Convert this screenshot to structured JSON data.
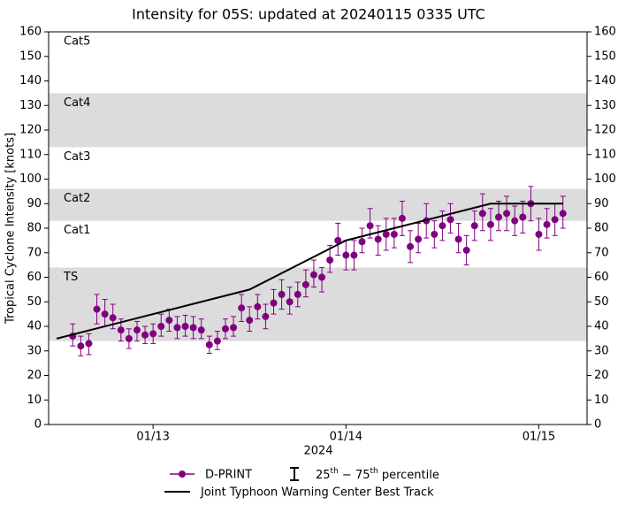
{
  "chart_data": {
    "type": "errorbar-line",
    "title": "Intensity for 05S: updated at 20240115 0335 UTC",
    "ylabel": "Tropical Cyclone Intensity [knots]",
    "xlabel": "2024",
    "xlim": [
      "2024-01-12T11:00",
      "2024-01-15T06:00"
    ],
    "xticks": [
      {
        "value": "2024-01-13T00:00",
        "label": "01/13"
      },
      {
        "value": "2024-01-14T00:00",
        "label": "01/14"
      },
      {
        "value": "2024-01-15T00:00",
        "label": "01/15"
      }
    ],
    "ylim": [
      0,
      160
    ],
    "yticks": [
      0,
      10,
      20,
      30,
      40,
      50,
      60,
      70,
      80,
      90,
      100,
      110,
      120,
      130,
      140,
      150,
      160
    ],
    "y2lim": [
      0,
      160
    ],
    "y2ticks": [
      0,
      10,
      20,
      30,
      40,
      50,
      60,
      70,
      80,
      90,
      100,
      110,
      120,
      130,
      140,
      150,
      160
    ],
    "bands": [
      {
        "label": "TS",
        "range": [
          34,
          64
        ],
        "shaded": true
      },
      {
        "label": "Cat1",
        "range": [
          64,
          83
        ],
        "shaded": false
      },
      {
        "label": "Cat2",
        "range": [
          83,
          96
        ],
        "shaded": true
      },
      {
        "label": "Cat3",
        "range": [
          96,
          113
        ],
        "shaded": false
      },
      {
        "label": "Cat4",
        "range": [
          113,
          135
        ],
        "shaded": true
      },
      {
        "label": "Cat5",
        "range": [
          137,
          160
        ],
        "shaded": false
      }
    ],
    "band_color": "#dcdcdc",
    "errorbar_legend": "25th − 75th percentile",
    "series": [
      {
        "name": "D-PRINT",
        "color": "#800080",
        "kind": "points",
        "x": [
          "2024-01-12T14:00",
          "2024-01-12T15:00",
          "2024-01-12T16:00",
          "2024-01-12T17:00",
          "2024-01-12T18:00",
          "2024-01-12T19:00",
          "2024-01-12T20:00",
          "2024-01-12T21:00",
          "2024-01-12T22:00",
          "2024-01-12T23:00",
          "2024-01-13T00:00",
          "2024-01-13T01:00",
          "2024-01-13T02:00",
          "2024-01-13T03:00",
          "2024-01-13T04:00",
          "2024-01-13T05:00",
          "2024-01-13T06:00",
          "2024-01-13T07:00",
          "2024-01-13T08:00",
          "2024-01-13T09:00",
          "2024-01-13T10:00",
          "2024-01-13T11:00",
          "2024-01-13T12:00",
          "2024-01-13T13:00",
          "2024-01-13T14:00",
          "2024-01-13T15:00",
          "2024-01-13T16:00",
          "2024-01-13T17:00",
          "2024-01-13T18:00",
          "2024-01-13T19:00",
          "2024-01-13T20:00",
          "2024-01-13T21:00",
          "2024-01-13T22:00",
          "2024-01-13T23:00",
          "2024-01-14T00:00",
          "2024-01-14T01:00",
          "2024-01-14T02:00",
          "2024-01-14T03:00",
          "2024-01-14T04:00",
          "2024-01-14T05:00",
          "2024-01-14T06:00",
          "2024-01-14T07:00",
          "2024-01-14T08:00",
          "2024-01-14T09:00",
          "2024-01-14T10:00",
          "2024-01-14T11:00",
          "2024-01-14T12:00",
          "2024-01-14T13:00",
          "2024-01-14T14:00",
          "2024-01-14T15:00",
          "2024-01-14T16:00",
          "2024-01-14T17:00",
          "2024-01-14T18:00",
          "2024-01-14T19:00",
          "2024-01-14T20:00",
          "2024-01-14T21:00",
          "2024-01-14T22:00",
          "2024-01-14T23:00",
          "2024-01-15T00:00",
          "2024-01-15T01:00",
          "2024-01-15T02:00",
          "2024-01-15T03:00"
        ],
        "values": [
          36,
          32,
          33,
          47,
          45,
          43.5,
          38.5,
          35,
          38.5,
          36.5,
          37,
          40,
          42.5,
          39.5,
          40,
          39.5,
          38.5,
          32.5,
          34,
          39,
          39.5,
          47.5,
          42.5,
          48,
          44,
          49.5,
          53,
          50,
          53,
          57,
          61,
          60,
          67,
          75,
          69,
          69,
          74.5,
          81,
          75.5,
          77.5,
          77.5,
          84,
          72.5,
          75.5,
          83,
          77.5,
          81,
          83.5,
          75.5,
          71,
          81,
          86,
          81.5,
          84.5,
          86,
          83,
          84.5,
          90,
          77.5,
          81.5,
          83.5,
          86
        ],
        "p25": [
          32,
          28,
          28.5,
          41,
          40,
          39,
          34,
          31,
          34,
          33,
          33,
          36,
          38,
          35,
          36,
          35,
          35,
          29,
          30.5,
          35,
          36,
          42,
          38,
          43,
          39,
          45,
          47,
          45,
          48,
          52,
          56,
          54,
          62,
          69,
          63,
          63,
          70,
          76,
          69,
          71,
          72,
          77,
          66,
          70,
          76,
          72,
          75,
          78,
          70,
          65,
          75,
          79,
          75,
          79,
          79,
          77,
          78,
          83,
          71,
          76,
          77,
          80
        ],
        "p75": [
          41,
          36,
          37,
          53,
          51,
          49,
          43,
          39,
          42,
          40,
          41,
          45,
          47,
          44,
          44.5,
          44,
          43,
          36,
          38,
          43,
          44,
          53,
          48,
          53,
          49,
          55,
          59,
          56,
          58,
          63,
          67,
          64,
          73,
          82,
          75,
          75,
          80,
          88,
          81,
          84,
          84,
          91,
          79,
          82,
          90,
          83,
          87,
          90,
          82,
          77,
          87,
          94,
          88,
          91,
          93,
          89,
          91,
          97,
          84,
          88,
          90,
          93
        ]
      },
      {
        "name": "Joint Typhoon Warning Center Best Track",
        "color": "#000000",
        "kind": "line",
        "x": [
          "2024-01-12T12:00",
          "2024-01-13T12:00",
          "2024-01-14T00:00",
          "2024-01-14T18:00",
          "2024-01-15T03:00"
        ],
        "values": [
          35,
          55,
          75,
          90,
          90
        ]
      }
    ]
  }
}
